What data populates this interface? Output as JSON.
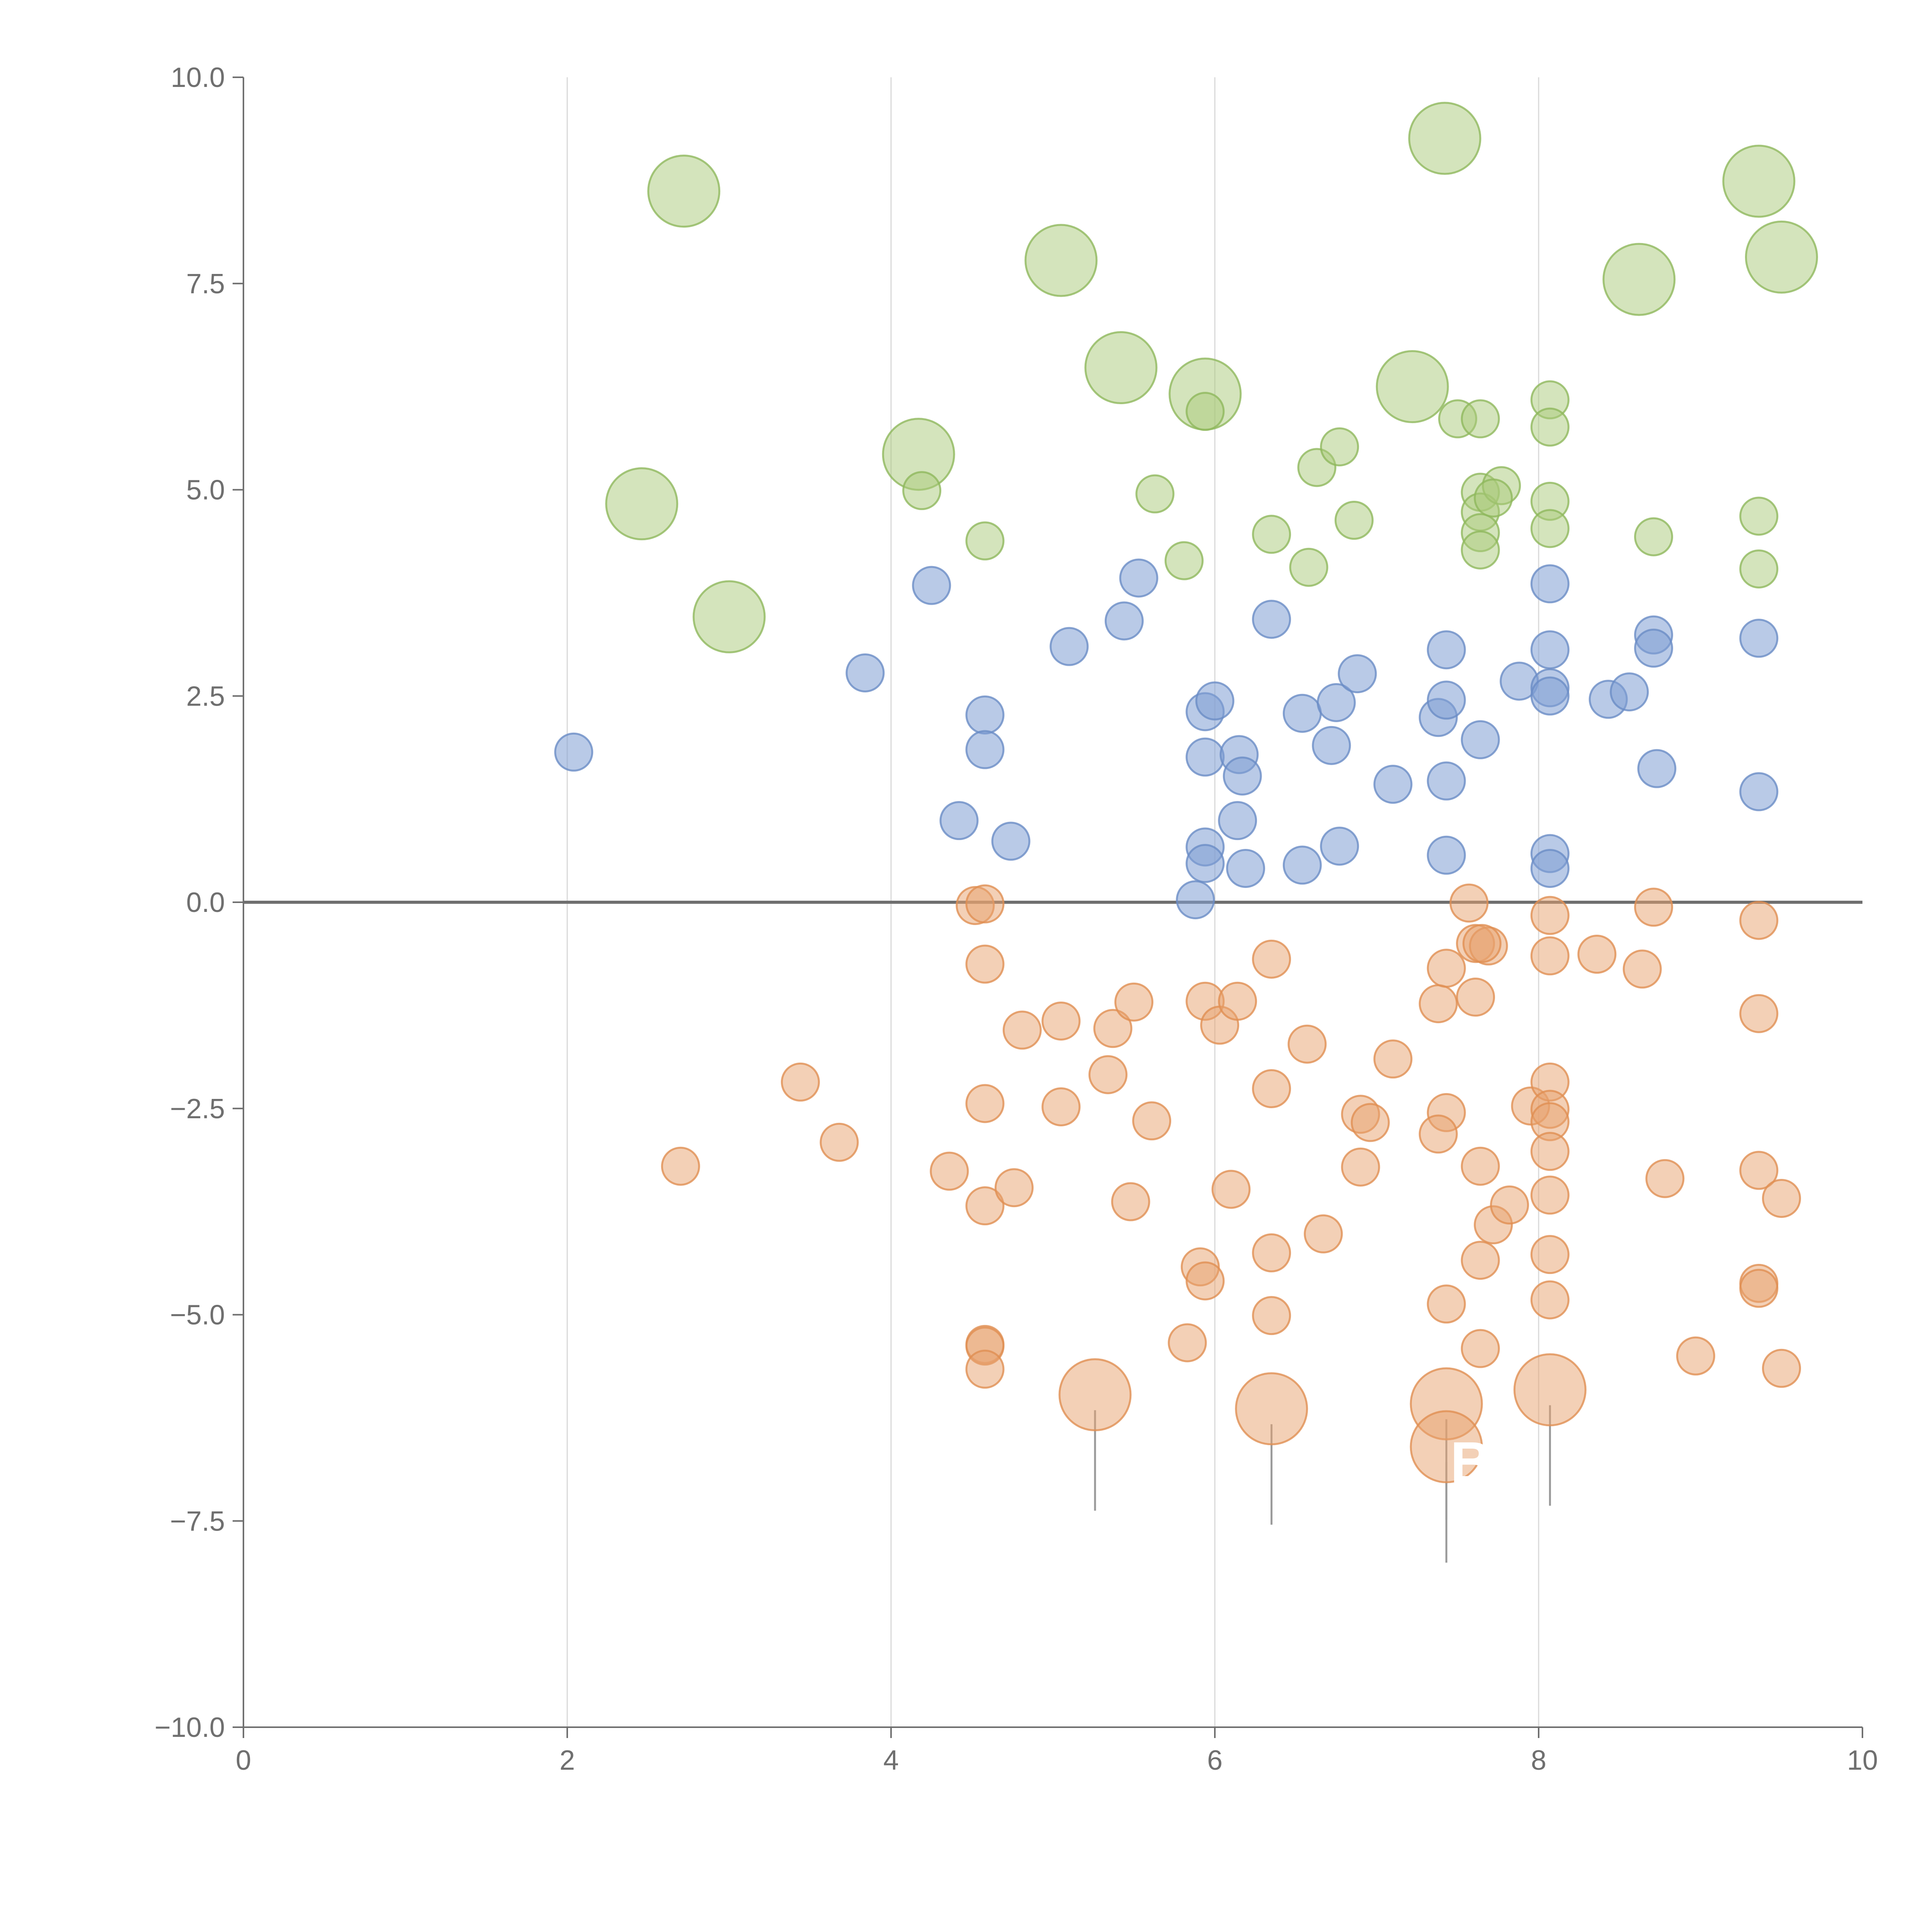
{
  "chart_data": {
    "type": "scatter",
    "title": "",
    "xlabel": "",
    "ylabel": "",
    "xlim": [
      0,
      10
    ],
    "ylim": [
      -10,
      10
    ],
    "x_ticks": [
      "0",
      "2",
      "4",
      "6",
      "8",
      "10"
    ],
    "y_ticks": [
      "10.0",
      "7.5",
      "5.0",
      "2.5",
      "0.0",
      "−2.5",
      "−5.0",
      "−7.5",
      "−10.0"
    ],
    "x_tick_values": [
      0,
      2,
      4,
      6,
      8,
      10
    ],
    "y_tick_values": [
      10,
      7.5,
      5,
      2.5,
      0,
      -2.5,
      -5,
      -7.5,
      -10
    ],
    "grid": "vertical",
    "zero_line": true,
    "colors": {
      "green": "#a9c97a",
      "blue": "#7f9fd3",
      "orange": "#e8a16e",
      "axis": "#6f6f6f",
      "grid": "#d9d9d9"
    },
    "series": [
      {
        "name": "green-large",
        "color": "green",
        "size": "large",
        "points": [
          [
            2.72,
            8.62
          ],
          [
            5.05,
            7.78
          ],
          [
            7.42,
            9.26
          ],
          [
            9.36,
            8.74
          ],
          [
            9.5,
            7.82
          ],
          [
            8.62,
            7.55
          ],
          [
            5.42,
            6.48
          ],
          [
            5.94,
            6.16
          ],
          [
            7.22,
            6.25
          ],
          [
            4.17,
            5.43
          ],
          [
            2.46,
            4.83
          ],
          [
            3.0,
            3.46
          ]
        ]
      },
      {
        "name": "green-small",
        "color": "green",
        "size": "small",
        "points": [
          [
            5.94,
            5.95
          ],
          [
            4.19,
            4.99
          ],
          [
            4.58,
            4.38
          ],
          [
            5.63,
            4.95
          ],
          [
            5.81,
            4.14
          ],
          [
            6.35,
            4.46
          ],
          [
            6.58,
            4.06
          ],
          [
            6.63,
            5.27
          ],
          [
            6.77,
            5.52
          ],
          [
            6.86,
            4.63
          ],
          [
            7.5,
            5.86
          ],
          [
            7.64,
            5.86
          ],
          [
            7.64,
            4.97
          ],
          [
            7.64,
            4.73
          ],
          [
            7.64,
            4.48
          ],
          [
            7.64,
            4.27
          ],
          [
            7.77,
            5.05
          ],
          [
            7.72,
            4.9
          ],
          [
            8.07,
            6.09
          ],
          [
            8.07,
            5.76
          ],
          [
            8.07,
            4.86
          ],
          [
            8.07,
            4.53
          ],
          [
            8.71,
            4.43
          ],
          [
            9.36,
            4.68
          ],
          [
            9.36,
            4.04
          ]
        ]
      },
      {
        "name": "blue",
        "color": "blue",
        "size": "small",
        "points": [
          [
            2.04,
            1.82
          ],
          [
            3.84,
            2.78
          ],
          [
            4.25,
            3.84
          ],
          [
            4.58,
            2.27
          ],
          [
            4.58,
            1.85
          ],
          [
            4.42,
            0.99
          ],
          [
            4.74,
            0.74
          ],
          [
            5.1,
            3.1
          ],
          [
            5.44,
            3.41
          ],
          [
            5.53,
            3.93
          ],
          [
            5.94,
            2.31
          ],
          [
            6.0,
            2.44
          ],
          [
            5.94,
            1.76
          ],
          [
            6.15,
            1.79
          ],
          [
            6.17,
            1.53
          ],
          [
            6.14,
            0.99
          ],
          [
            5.94,
            0.67
          ],
          [
            5.94,
            0.47
          ],
          [
            6.19,
            0.41
          ],
          [
            5.88,
            0.03
          ],
          [
            6.35,
            3.43
          ],
          [
            6.54,
            2.29
          ],
          [
            6.75,
            2.42
          ],
          [
            6.72,
            1.9
          ],
          [
            6.88,
            2.77
          ],
          [
            6.54,
            0.45
          ],
          [
            6.77,
            0.68
          ],
          [
            7.1,
            1.43
          ],
          [
            7.38,
            2.24
          ],
          [
            7.43,
            3.06
          ],
          [
            7.43,
            2.45
          ],
          [
            7.43,
            1.47
          ],
          [
            7.43,
            0.57
          ],
          [
            7.64,
            1.97
          ],
          [
            7.88,
            2.68
          ],
          [
            8.07,
            3.86
          ],
          [
            8.07,
            3.06
          ],
          [
            8.07,
            2.6
          ],
          [
            8.07,
            2.5
          ],
          [
            8.07,
            0.59
          ],
          [
            8.07,
            0.41
          ],
          [
            8.43,
            2.46
          ],
          [
            8.56,
            2.55
          ],
          [
            8.71,
            3.24
          ],
          [
            8.71,
            3.08
          ],
          [
            8.73,
            1.62
          ],
          [
            9.36,
            3.2
          ],
          [
            9.36,
            1.34
          ]
        ]
      },
      {
        "name": "orange-small",
        "color": "orange",
        "size": "small",
        "points": [
          [
            2.7,
            -3.2
          ],
          [
            3.44,
            -2.18
          ],
          [
            3.68,
            -2.91
          ],
          [
            4.52,
            -0.04
          ],
          [
            4.58,
            -0.02
          ],
          [
            4.58,
            -0.75
          ],
          [
            4.58,
            -2.44
          ],
          [
            4.36,
            -3.26
          ],
          [
            4.58,
            -3.68
          ],
          [
            4.76,
            -3.46
          ],
          [
            4.58,
            -5.36
          ],
          [
            4.58,
            -5.38
          ],
          [
            4.58,
            -5.66
          ],
          [
            4.81,
            -1.55
          ],
          [
            5.05,
            -1.44
          ],
          [
            5.05,
            -2.48
          ],
          [
            5.34,
            -2.09
          ],
          [
            5.37,
            -1.53
          ],
          [
            5.5,
            -1.21
          ],
          [
            5.48,
            -3.63
          ],
          [
            5.61,
            -2.65
          ],
          [
            5.83,
            -5.34
          ],
          [
            5.91,
            -4.42
          ],
          [
            5.94,
            -4.59
          ],
          [
            5.94,
            -1.2
          ],
          [
            6.03,
            -1.49
          ],
          [
            6.14,
            -1.2
          ],
          [
            6.1,
            -3.48
          ],
          [
            6.35,
            -0.69
          ],
          [
            6.35,
            -2.26
          ],
          [
            6.35,
            -4.25
          ],
          [
            6.35,
            -5.01
          ],
          [
            6.57,
            -1.72
          ],
          [
            6.67,
            -4.02
          ],
          [
            6.9,
            -2.57
          ],
          [
            6.96,
            -2.67
          ],
          [
            6.9,
            -3.21
          ],
          [
            7.1,
            -1.9
          ],
          [
            7.38,
            -1.23
          ],
          [
            7.43,
            -0.8
          ],
          [
            7.43,
            -2.55
          ],
          [
            7.38,
            -2.81
          ],
          [
            7.43,
            -4.87
          ],
          [
            7.57,
            -0.01
          ],
          [
            7.61,
            -0.5
          ],
          [
            7.69,
            -0.53
          ],
          [
            7.65,
            -0.5
          ],
          [
            7.61,
            -1.15
          ],
          [
            7.64,
            -3.2
          ],
          [
            7.64,
            -4.34
          ],
          [
            7.64,
            -5.41
          ],
          [
            7.72,
            -3.91
          ],
          [
            7.82,
            -3.67
          ],
          [
            7.95,
            -2.47
          ],
          [
            8.07,
            -0.16
          ],
          [
            8.07,
            -0.65
          ],
          [
            8.07,
            -2.18
          ],
          [
            8.07,
            -2.51
          ],
          [
            8.07,
            -2.66
          ],
          [
            8.07,
            -3.02
          ],
          [
            8.07,
            -3.55
          ],
          [
            8.07,
            -4.27
          ],
          [
            8.07,
            -4.82
          ],
          [
            8.36,
            -0.63
          ],
          [
            8.64,
            -0.81
          ],
          [
            8.71,
            -0.06
          ],
          [
            8.78,
            -3.35
          ],
          [
            8.97,
            -5.5
          ],
          [
            9.36,
            -0.22
          ],
          [
            9.36,
            -1.35
          ],
          [
            9.36,
            -3.25
          ],
          [
            9.36,
            -4.62
          ],
          [
            9.36,
            -4.68
          ],
          [
            9.5,
            -3.59
          ],
          [
            9.5,
            -5.65
          ]
        ]
      },
      {
        "name": "orange-large",
        "color": "orange",
        "size": "large",
        "points": [
          [
            5.26,
            -5.97
          ],
          [
            6.35,
            -6.14
          ],
          [
            7.43,
            -6.08
          ],
          [
            7.43,
            -6.6
          ],
          [
            8.07,
            -5.91
          ]
        ]
      }
    ],
    "annotations": [
      {
        "text": "B",
        "x": 7.43,
        "y": -6.75,
        "color": "#ffffff"
      }
    ]
  }
}
